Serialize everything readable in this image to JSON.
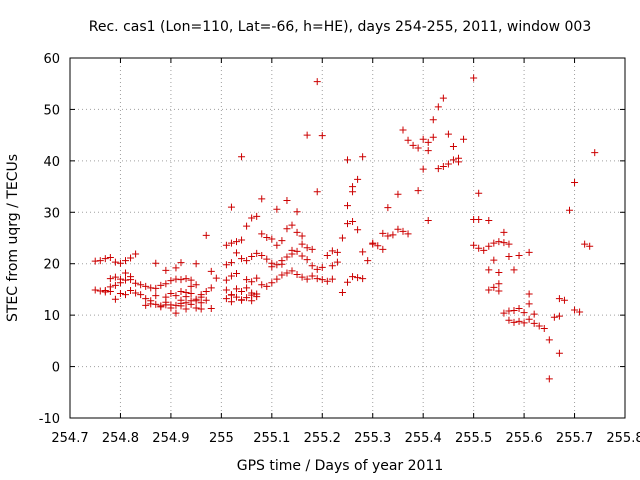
{
  "chart_data": {
    "type": "scatter",
    "title": "Rec. cas1 (Lon=110, Lat=-66, h=HE), days 254-255, 2011, window 003",
    "xlabel": "GPS time / Days of year 2011",
    "ylabel": "STEC from uqrg / TECUs",
    "xlim": [
      254.7,
      255.8
    ],
    "ylim": [
      -10,
      60
    ],
    "xticks": [
      "254.7",
      "254.8",
      "254.9",
      "255",
      "255.1",
      "255.2",
      "255.3",
      "255.4",
      "255.5",
      "255.6",
      "255.7",
      "255.8"
    ],
    "yticks": [
      "-10",
      "0",
      "10",
      "20",
      "30",
      "40",
      "50",
      "60"
    ],
    "grid": true,
    "marker": "plus",
    "color": "#cc0000",
    "series": [
      {
        "points": [
          [
            254.75,
            20.5
          ],
          [
            254.76,
            20.6
          ],
          [
            254.77,
            21.0
          ],
          [
            254.78,
            21.2
          ],
          [
            254.79,
            20.3
          ],
          [
            254.8,
            20.1
          ],
          [
            254.81,
            20.6
          ],
          [
            254.82,
            21.1
          ],
          [
            254.83,
            21.9
          ],
          [
            254.87,
            20.1
          ],
          [
            254.89,
            18.7
          ],
          [
            254.91,
            19.2
          ],
          [
            254.92,
            20.2
          ],
          [
            254.95,
            20.0
          ],
          [
            254.75,
            14.9
          ],
          [
            254.76,
            14.7
          ],
          [
            254.77,
            14.8
          ],
          [
            254.78,
            15.5
          ],
          [
            254.79,
            15.8
          ],
          [
            254.8,
            16.3
          ],
          [
            254.81,
            16.8
          ],
          [
            254.82,
            16.9
          ],
          [
            254.83,
            16.2
          ],
          [
            254.84,
            15.9
          ],
          [
            254.85,
            15.6
          ],
          [
            254.86,
            15.3
          ],
          [
            254.87,
            15.2
          ],
          [
            254.88,
            15.8
          ],
          [
            254.89,
            16.1
          ],
          [
            254.9,
            16.7
          ],
          [
            254.91,
            17.0
          ],
          [
            254.92,
            16.9
          ],
          [
            254.93,
            17.1
          ],
          [
            254.94,
            16.8
          ],
          [
            254.95,
            15.9
          ],
          [
            254.78,
            17.1
          ],
          [
            254.79,
            17.4
          ],
          [
            254.8,
            17.0
          ],
          [
            254.81,
            18.2
          ],
          [
            254.82,
            17.5
          ],
          [
            254.83,
            14.3
          ],
          [
            254.84,
            14.0
          ],
          [
            254.85,
            13.2
          ],
          [
            254.86,
            12.8
          ],
          [
            254.87,
            12.1
          ],
          [
            254.88,
            11.8
          ],
          [
            254.89,
            13.5
          ],
          [
            254.9,
            14.2
          ],
          [
            254.91,
            13.8
          ],
          [
            254.92,
            12.9
          ],
          [
            254.93,
            12.4
          ],
          [
            254.94,
            12.8
          ],
          [
            254.95,
            13.1
          ],
          [
            254.96,
            12.4
          ],
          [
            254.77,
            14.5
          ],
          [
            254.78,
            14.6
          ],
          [
            254.79,
            13.1
          ],
          [
            254.8,
            14.2
          ],
          [
            254.81,
            14.0
          ],
          [
            254.82,
            14.8
          ],
          [
            254.85,
            11.9
          ],
          [
            254.86,
            12.2
          ],
          [
            254.87,
            13.8
          ],
          [
            254.88,
            11.6
          ],
          [
            254.89,
            12.5
          ],
          [
            254.9,
            12.0
          ],
          [
            254.91,
            10.4
          ],
          [
            254.92,
            11.8
          ],
          [
            254.93,
            11.2
          ],
          [
            254.94,
            12.1
          ],
          [
            254.95,
            11.4
          ],
          [
            254.96,
            13.5
          ],
          [
            254.97,
            14.6
          ],
          [
            254.98,
            15.3
          ],
          [
            254.89,
            12.0
          ],
          [
            254.9,
            11.4
          ],
          [
            254.91,
            11.9
          ],
          [
            254.92,
            12.3
          ],
          [
            254.93,
            14.4
          ],
          [
            254.94,
            15.6
          ],
          [
            254.95,
            12.8
          ],
          [
            254.96,
            14.0
          ],
          [
            254.97,
            12.9
          ],
          [
            254.98,
            11.3
          ],
          [
            254.99,
            17.2
          ],
          [
            254.97,
            25.5
          ],
          [
            254.98,
            18.5
          ],
          [
            254.96,
            11.2
          ],
          [
            254.92,
            14.6
          ],
          [
            254.93,
            13.6
          ],
          [
            254.94,
            14.2
          ],
          [
            255.01,
            13.2
          ],
          [
            255.02,
            12.6
          ],
          [
            255.03,
            13.5
          ],
          [
            255.04,
            12.9
          ],
          [
            255.05,
            13.4
          ],
          [
            255.06,
            12.8
          ],
          [
            255.07,
            13.6
          ],
          [
            255.01,
            14.9
          ],
          [
            255.02,
            14.0
          ],
          [
            255.03,
            15.1
          ],
          [
            255.04,
            14.6
          ],
          [
            255.05,
            15.3
          ],
          [
            255.06,
            13.9
          ],
          [
            255.07,
            14.1
          ],
          [
            255.02,
            13.9
          ],
          [
            255.04,
            13.0
          ],
          [
            255.06,
            14.3
          ],
          [
            255.01,
            16.8
          ],
          [
            255.02,
            17.6
          ],
          [
            255.03,
            18.1
          ],
          [
            255.05,
            16.9
          ],
          [
            255.06,
            16.5
          ],
          [
            255.07,
            17.2
          ],
          [
            255.08,
            15.9
          ],
          [
            255.09,
            15.6
          ],
          [
            255.1,
            16.3
          ],
          [
            255.11,
            17.0
          ],
          [
            255.12,
            17.8
          ],
          [
            255.13,
            18.2
          ],
          [
            255.14,
            18.6
          ],
          [
            255.15,
            17.9
          ],
          [
            255.16,
            17.4
          ],
          [
            255.17,
            17.0
          ],
          [
            255.18,
            17.6
          ],
          [
            255.19,
            17.1
          ],
          [
            255.2,
            16.9
          ],
          [
            255.21,
            16.6
          ],
          [
            255.22,
            17.0
          ],
          [
            255.01,
            19.8
          ],
          [
            255.02,
            20.2
          ],
          [
            255.03,
            22.1
          ],
          [
            255.04,
            21.0
          ],
          [
            255.05,
            20.6
          ],
          [
            255.06,
            21.4
          ],
          [
            255.07,
            22.0
          ],
          [
            255.08,
            21.6
          ],
          [
            255.09,
            20.9
          ],
          [
            255.1,
            20.1
          ],
          [
            255.11,
            19.8
          ],
          [
            255.12,
            20.6
          ],
          [
            255.13,
            21.3
          ],
          [
            255.14,
            21.9
          ],
          [
            255.15,
            22.4
          ],
          [
            255.16,
            21.5
          ],
          [
            255.17,
            20.8
          ],
          [
            255.18,
            19.6
          ],
          [
            255.19,
            18.9
          ],
          [
            255.2,
            19.3
          ],
          [
            255.21,
            21.6
          ],
          [
            255.01,
            23.6
          ],
          [
            255.02,
            24.0
          ],
          [
            255.03,
            24.3
          ],
          [
            255.04,
            24.6
          ],
          [
            255.05,
            27.3
          ],
          [
            255.06,
            28.9
          ],
          [
            255.07,
            29.2
          ],
          [
            255.08,
            25.8
          ],
          [
            255.09,
            25.1
          ],
          [
            255.1,
            24.8
          ],
          [
            255.11,
            23.6
          ],
          [
            255.12,
            24.5
          ],
          [
            255.13,
            26.8
          ],
          [
            255.14,
            27.5
          ],
          [
            255.15,
            26.1
          ],
          [
            255.16,
            25.4
          ],
          [
            255.17,
            23.1
          ],
          [
            255.18,
            22.8
          ],
          [
            255.02,
            31.0
          ],
          [
            255.04,
            40.8
          ],
          [
            255.08,
            32.6
          ],
          [
            255.11,
            30.6
          ],
          [
            255.13,
            32.3
          ],
          [
            255.15,
            30.1
          ],
          [
            255.17,
            45.0
          ],
          [
            255.19,
            34.0
          ],
          [
            255.19,
            55.4
          ],
          [
            255.2,
            44.9
          ],
          [
            255.16,
            23.8
          ],
          [
            255.14,
            22.6
          ],
          [
            255.12,
            19.9
          ],
          [
            255.1,
            19.4
          ],
          [
            255.22,
            22.5
          ],
          [
            255.23,
            20.3
          ],
          [
            255.24,
            14.4
          ],
          [
            255.25,
            16.4
          ],
          [
            255.26,
            17.5
          ],
          [
            255.27,
            17.3
          ],
          [
            255.28,
            17.1
          ],
          [
            255.22,
            19.6
          ],
          [
            255.23,
            22.2
          ],
          [
            255.24,
            25.0
          ],
          [
            255.25,
            27.8
          ],
          [
            255.26,
            28.2
          ],
          [
            255.27,
            26.6
          ],
          [
            255.28,
            22.3
          ],
          [
            255.29,
            20.6
          ],
          [
            255.3,
            23.8
          ],
          [
            255.31,
            23.5
          ],
          [
            255.32,
            22.8
          ],
          [
            255.3,
            24.0
          ],
          [
            255.25,
            31.3
          ],
          [
            255.26,
            34.0
          ],
          [
            255.26,
            35.0
          ],
          [
            255.27,
            36.4
          ],
          [
            255.25,
            40.2
          ],
          [
            255.28,
            40.8
          ],
          [
            255.32,
            25.9
          ],
          [
            255.33,
            25.4
          ],
          [
            255.34,
            25.6
          ],
          [
            255.35,
            26.7
          ],
          [
            255.36,
            26.3
          ],
          [
            255.37,
            25.8
          ],
          [
            255.33,
            30.9
          ],
          [
            255.35,
            33.5
          ],
          [
            255.36,
            46.0
          ],
          [
            255.37,
            44.0
          ],
          [
            255.38,
            43.0
          ],
          [
            255.39,
            42.5
          ],
          [
            255.4,
            44.2
          ],
          [
            255.41,
            43.6
          ],
          [
            255.42,
            44.6
          ],
          [
            255.43,
            50.5
          ],
          [
            255.44,
            52.2
          ],
          [
            255.45,
            45.2
          ],
          [
            255.46,
            42.8
          ],
          [
            255.47,
            40.5
          ],
          [
            255.42,
            48.0
          ],
          [
            255.41,
            42.0
          ],
          [
            255.39,
            34.2
          ],
          [
            255.4,
            38.4
          ],
          [
            255.41,
            28.4
          ],
          [
            255.43,
            38.5
          ],
          [
            255.44,
            38.9
          ],
          [
            255.45,
            39.4
          ],
          [
            255.46,
            40.2
          ],
          [
            255.47,
            39.8
          ],
          [
            255.48,
            44.2
          ],
          [
            255.5,
            56.1
          ],
          [
            255.5,
            28.6
          ],
          [
            255.51,
            28.6
          ],
          [
            255.5,
            23.6
          ],
          [
            255.51,
            23.0
          ],
          [
            255.52,
            22.6
          ],
          [
            255.53,
            23.4
          ],
          [
            255.54,
            24.0
          ],
          [
            255.55,
            24.3
          ],
          [
            255.56,
            24.1
          ],
          [
            255.57,
            23.8
          ],
          [
            255.51,
            33.7
          ],
          [
            255.53,
            28.4
          ],
          [
            255.56,
            26.1
          ],
          [
            255.53,
            18.8
          ],
          [
            255.54,
            20.7
          ],
          [
            255.55,
            18.3
          ],
          [
            255.57,
            21.4
          ],
          [
            255.58,
            18.8
          ],
          [
            255.53,
            14.9
          ],
          [
            255.54,
            15.4
          ],
          [
            255.55,
            16.1
          ],
          [
            255.55,
            14.7
          ],
          [
            255.56,
            10.4
          ],
          [
            255.57,
            10.8
          ],
          [
            255.58,
            10.9
          ],
          [
            255.59,
            11.3
          ],
          [
            255.6,
            10.5
          ],
          [
            255.57,
            9.0
          ],
          [
            255.58,
            8.6
          ],
          [
            255.59,
            8.8
          ],
          [
            255.6,
            8.5
          ],
          [
            255.61,
            9.2
          ],
          [
            255.62,
            8.4
          ],
          [
            255.63,
            7.9
          ],
          [
            255.64,
            7.4
          ],
          [
            255.65,
            5.2
          ],
          [
            255.59,
            21.6
          ],
          [
            255.61,
            22.2
          ],
          [
            255.61,
            14.1
          ],
          [
            255.61,
            12.2
          ],
          [
            255.62,
            10.2
          ],
          [
            255.66,
            9.6
          ],
          [
            255.67,
            9.8
          ],
          [
            255.67,
            2.6
          ],
          [
            255.65,
            -2.4
          ],
          [
            255.67,
            13.2
          ],
          [
            255.68,
            12.9
          ],
          [
            255.69,
            30.4
          ],
          [
            255.7,
            35.8
          ],
          [
            255.7,
            11.0
          ],
          [
            255.71,
            10.6
          ],
          [
            255.72,
            23.8
          ],
          [
            255.73,
            23.4
          ],
          [
            255.74,
            41.6
          ]
        ]
      }
    ]
  }
}
